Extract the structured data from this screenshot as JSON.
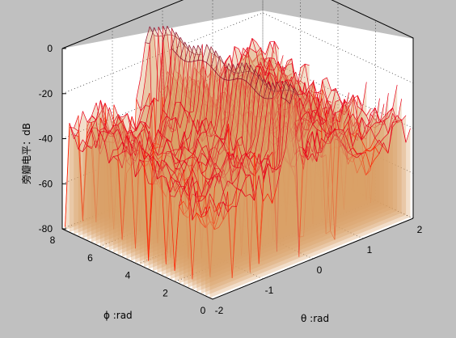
{
  "chart_data": {
    "type": "surface",
    "title": "",
    "xlabel": "θ :rad",
    "ylabel": "ϕ :rad",
    "zlabel": "旁瓣电平：dB",
    "xlim": [
      -2,
      2
    ],
    "ylim": [
      0,
      8
    ],
    "zlim": [
      -80,
      0
    ],
    "x_ticks": [
      "-2",
      "-1",
      "0",
      "1",
      "2"
    ],
    "y_ticks": [
      "0",
      "2",
      "4",
      "6",
      "8"
    ],
    "z_ticks": [
      "0",
      "-20",
      "-40",
      "-60",
      "-80"
    ],
    "grid": true,
    "legend": "none",
    "main_lobe": {
      "theta": -0.3,
      "level_db": 0
    },
    "sidelobe_floor_db": -32,
    "null_depth_db": -80
  },
  "colors": {
    "figure_background": "#c0c0c0",
    "axes_background": "#ffffff",
    "mesh_high": "#8b0a2a",
    "mesh_mid": "#e8001a",
    "mesh_low": "#ff2000",
    "fill_tan": "#d9a066"
  }
}
